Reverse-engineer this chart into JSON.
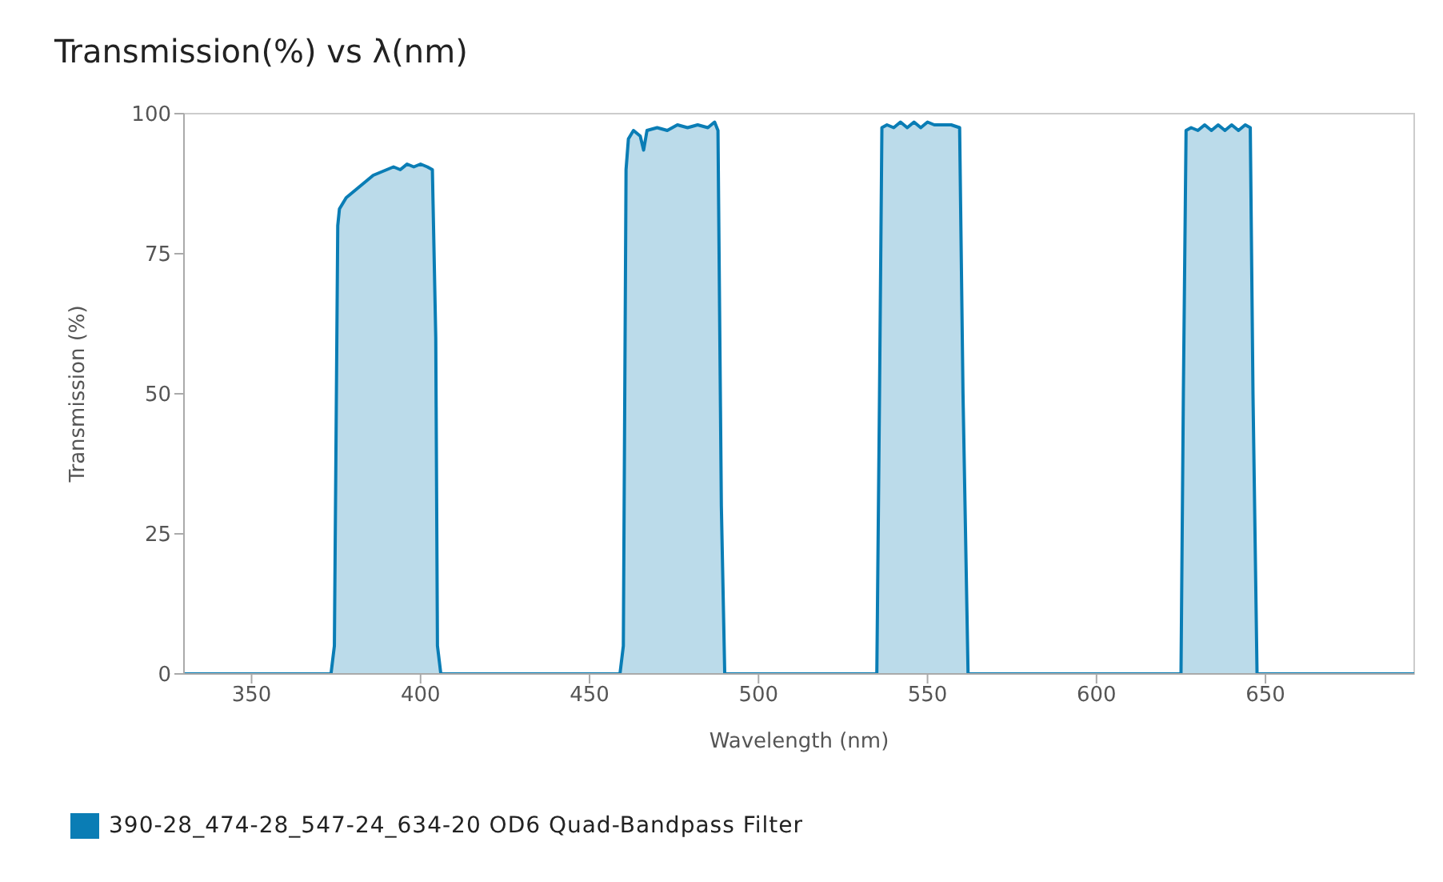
{
  "chart_data": {
    "type": "area",
    "title": "Transmission(%) vs λ(nm)",
    "xlabel": "Wavelength (nm)",
    "ylabel": "Transmission (%)",
    "xlim": [
      330,
      694
    ],
    "xticks": [
      350,
      400,
      450,
      500,
      550,
      600,
      650
    ],
    "ylim": [
      0,
      100
    ],
    "yticks": [
      0,
      25,
      50,
      75,
      100
    ],
    "grid": false,
    "legend": "bottom left",
    "series": [
      {
        "name": "390-28_474-28_547-24_634-20 OD6 Quad-Bandpass Filter",
        "color": "#0a7db5",
        "x": [
          330,
          373.5,
          374.5,
          375.5,
          376,
          378,
          380,
          382,
          384,
          386,
          388,
          390,
          392,
          394,
          396,
          398,
          400,
          402,
          403.5,
          404.5,
          405,
          406,
          459,
          460,
          460.8,
          461.5,
          463,
          465,
          466,
          467,
          470,
          473,
          476,
          479,
          482,
          485,
          487,
          488,
          489,
          490,
          535,
          535.8,
          536.5,
          538,
          540,
          542,
          544,
          546,
          548,
          550,
          552,
          554,
          557,
          559.5,
          560.5,
          562,
          625,
          625.7,
          626.5,
          628,
          630,
          632,
          634,
          636,
          638,
          640,
          642,
          644,
          645.5,
          646.3,
          647.5,
          694
        ],
        "values": [
          0,
          0,
          5,
          80,
          83,
          85,
          86,
          87,
          88,
          89,
          89.5,
          90,
          90.5,
          90,
          91,
          90.5,
          91,
          90.5,
          90,
          60,
          5,
          0,
          0,
          5,
          90,
          95.5,
          97,
          96,
          93.5,
          97,
          97.5,
          97,
          98,
          97.5,
          98,
          97.5,
          98.5,
          97,
          30,
          0,
          0,
          50,
          97.5,
          98,
          97.5,
          98.5,
          97.5,
          98.5,
          97.5,
          98.5,
          98,
          98,
          98,
          97.5,
          50,
          0,
          0,
          50,
          97,
          97.5,
          97,
          98,
          97,
          98,
          97,
          98,
          97,
          98,
          97.5,
          50,
          0,
          0
        ]
      }
    ]
  }
}
